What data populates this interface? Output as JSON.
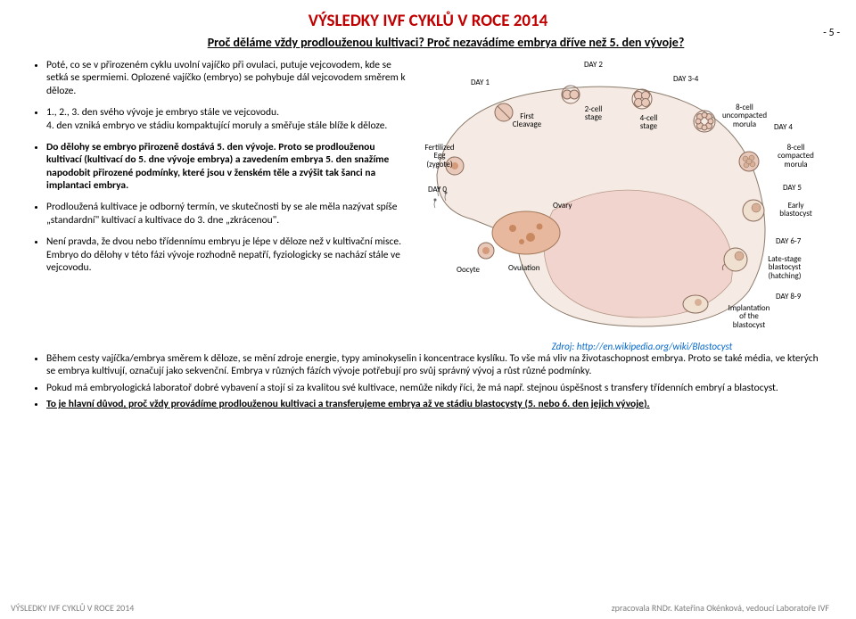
{
  "title": "VÝSLEDKY IVF CYKLŮ V ROCE 2014",
  "subtitle": "Proč děláme vždy prodlouženou kultivaci? Proč nezavádíme embrya dříve než 5. den vývoje?",
  "page_num": "- 5 -",
  "left": {
    "p1": "Poté, co se v přirozeném cyklu uvolní vajíčko při ovulaci, putuje vejcovodem, kde se setká se spermiemi. Oplozené vajíčko (embryo) se pohybuje dál vejcovodem směrem k děloze.",
    "p2a": "1., 2., 3. den svého vývoje je embryo stále ve vejcovodu.",
    "p2b": "4. den vzniká embryo ve stádiu kompaktující moruly a směřuje stále blíže k děloze.",
    "p3a": "Do dělohy se embryo přirozeně dostává 5. den vývoje. Proto se prodlouženou kultivací (kultivací do 5. dne vývoje embrya) a zavedením embrya 5. den snažíme napodobit přirozené podmínky, které jsou v ženském těle a zvýšit tak šanci na implantaci embrya.",
    "p4": "Prodloužená kultivace je odborný termín, ve skutečnosti by se ale měla nazývat spíše „standardní\" kultivací a kultivace do 3. dne „zkrácenou\".",
    "p5": "Není pravda, že dvou nebo třídennímu embryu je lépe v děloze než v kultivační misce. Embryo do dělohy v této fázi vývoje rozhodně nepatří, fyziologicky se nachází stále ve vejcovodu."
  },
  "citation": "Zdroj: http://en.wikipedia.org/wiki/Blastocyst",
  "full": {
    "b1": "Během cesty vajíčka/embrya směrem k děloze, se mění zdroje energie, typy aminokyselin i koncentrace kyslíku. To vše má vliv na životaschopnost embrya. Proto se také média, ve kterých se embrya kultivují, označují jako sekvenční. Embrya v různých fázích vývoje potřebují pro svůj správný vývoj a růst různé podmínky.",
    "b2": "Pokud má embryologická laboratoř dobré vybavení a stojí si za kvalitou své kultivace, nemůže nikdy říci, že má např. stejnou úspěšnost s transfery třídenních embryí a blastocyst.",
    "b3": "To je hlavní důvod, proč vždy provádíme prodlouženou kultivaci a transferujeme embrya až ve stádiu blastocysty (5. nebo 6. den jejich vývoje)."
  },
  "footer_left": "VÝSLEDKY IVF CYKLŮ V ROCE 2014",
  "footer_right": "zpracovala RNDr. Kateřina Okénková, vedoucí Laboratoře IVF",
  "diagram": {
    "labels": {
      "day0": "DAY 0",
      "day1": "DAY 1",
      "day2": "DAY 2",
      "day34": "DAY 3-4",
      "day4": "DAY 4",
      "day5": "DAY 5",
      "day67": "DAY 6-7",
      "day89": "DAY 8-9",
      "fert": "Fertilized\nEgg\n(zygote)",
      "first": "First\nCleavage",
      "cell2": "2-cell\nstage",
      "cell4": "4-cell\nstage",
      "cell8u": "8-cell\nuncompacted\nmorula",
      "cell8c": "8-cell\ncompacted\nmorula",
      "early": "Early\nblastocyst",
      "late": "Late-stage\nblastocyst\n(hatching)",
      "impl": "Implantation\nof the\nblastocyst",
      "ovary": "Ovary",
      "ovul": "Ovulation",
      "oocyte": "Oocyte"
    },
    "colors": {
      "outline": "#666666",
      "fill_light": "#f5ebe4",
      "fill_pink": "#f2d4cf",
      "cell_border": "#8a6a5a",
      "cell_fill": "#e8c8b8",
      "nucleus": "#d49a7a",
      "ovary": "#e8b89e"
    }
  }
}
